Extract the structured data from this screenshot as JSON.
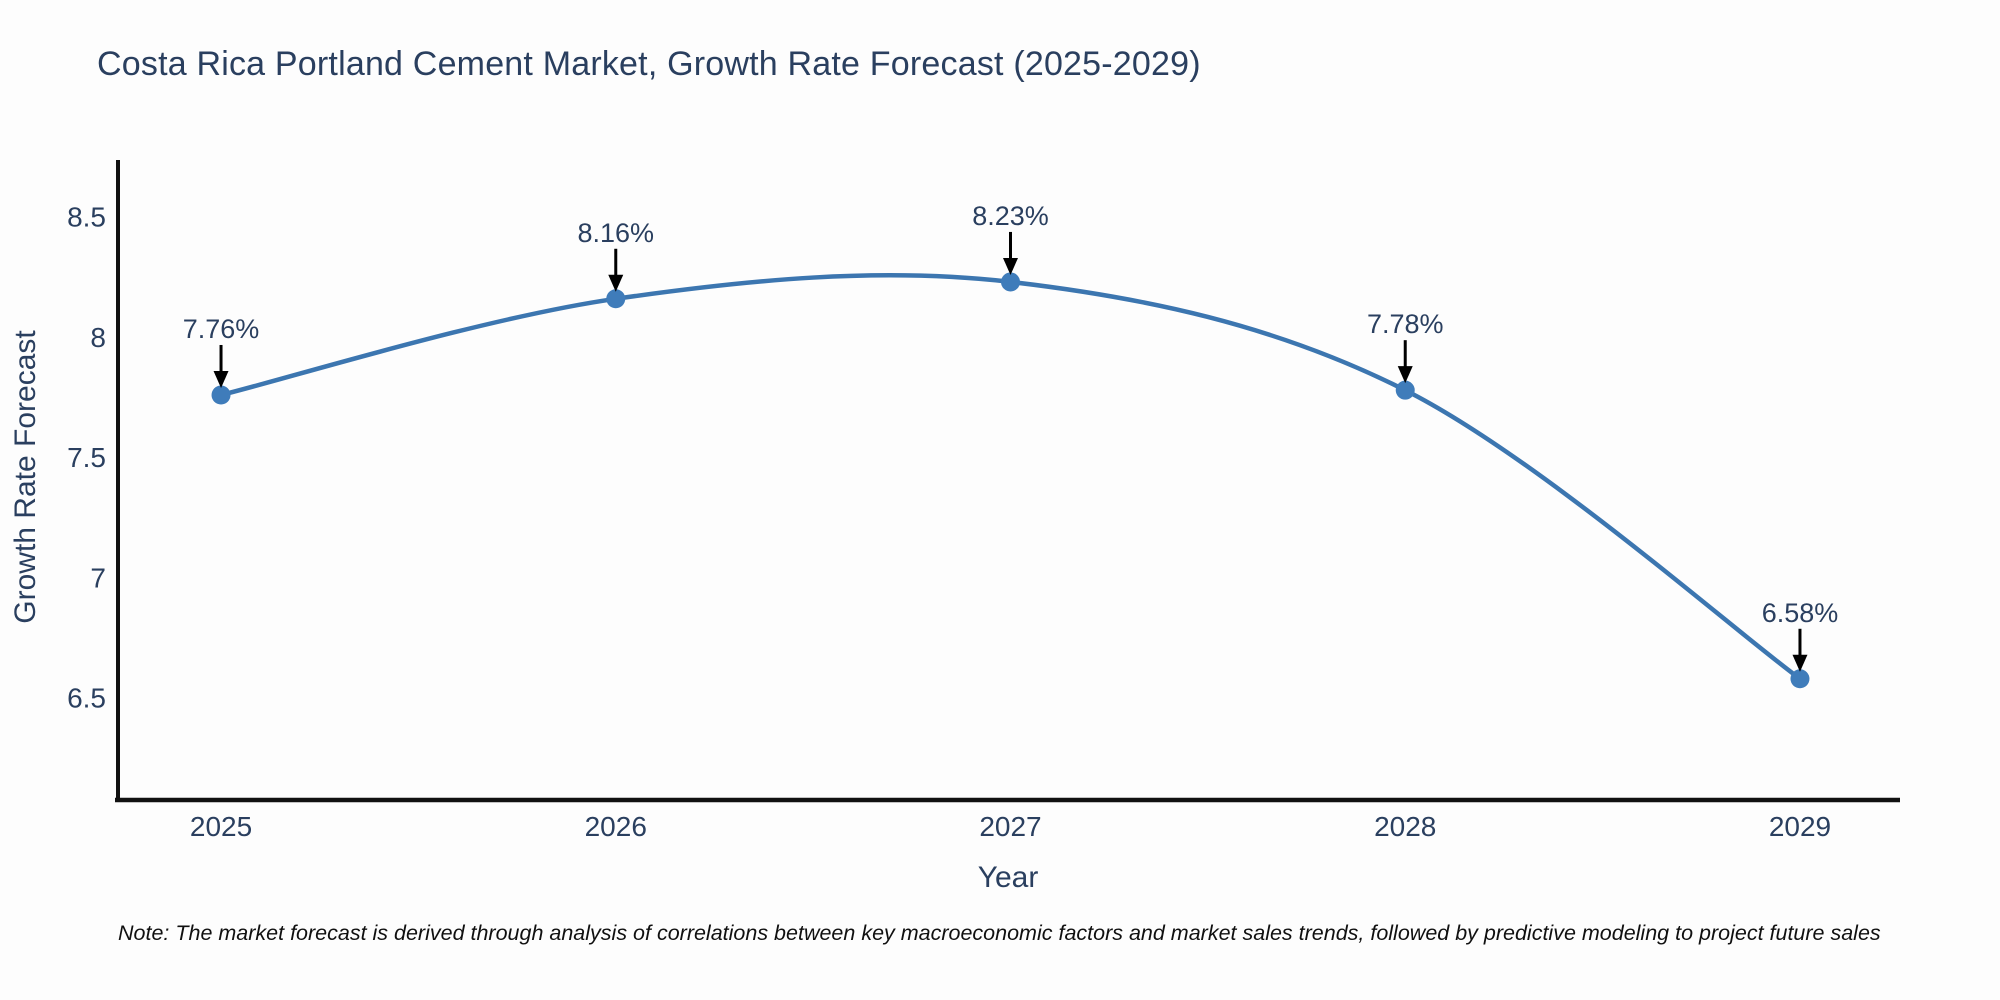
{
  "title": "Costa Rica Portland Cement Market, Growth Rate Forecast (2025-2029)",
  "note": "Note: The market forecast is derived through analysis of correlations between key macroeconomic factors and market sales trends, followed by predictive modeling to project future sales",
  "chart_data": {
    "type": "line",
    "line_shape": "spline",
    "x": [
      2025,
      2026,
      2027,
      2028,
      2029
    ],
    "series": [
      {
        "name": "Growth Rate Forecast",
        "values": [
          7.76,
          8.16,
          8.23,
          7.78,
          6.58
        ]
      }
    ],
    "point_labels": [
      "7.76%",
      "8.16%",
      "8.23%",
      "7.78%",
      "6.58%"
    ],
    "title": "Costa Rica Portland Cement Market, Growth Rate Forecast (2025-2029)",
    "xlabel": "Year",
    "ylabel": "Growth Rate Forecast",
    "x_tick_labels": [
      "2025",
      "2026",
      "2027",
      "2028",
      "2029"
    ],
    "y_tick_values": [
      6.5,
      7,
      7.5,
      8,
      8.5
    ],
    "y_tick_labels": [
      "6.5",
      "7",
      "7.5",
      "8",
      "8.5"
    ],
    "xlim": [
      2024.739,
      2029.261
    ],
    "ylim": [
      6.076,
      8.737
    ],
    "grid": false,
    "legend": "none",
    "colors": {
      "line": "#3c76b0",
      "marker": "#3f7cba",
      "axis": "#111111",
      "tick_text": "#2a3f5f",
      "annotation_text": "#2a3f5f",
      "annotation_arrow": "#000000",
      "background": "#fdfdfd"
    }
  }
}
